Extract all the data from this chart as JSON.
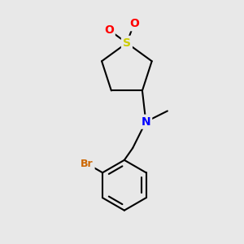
{
  "background_color": "#e8e8e8",
  "atom_colors": {
    "S": "#cccc00",
    "O": "#ff0000",
    "N": "#0000ff",
    "Br": "#cc6600",
    "C": "#000000"
  },
  "bond_color": "#000000",
  "bond_width": 1.5,
  "figsize": [
    3.0,
    3.0
  ],
  "dpi": 100,
  "font_size_main": 10,
  "font_size_br": 9
}
